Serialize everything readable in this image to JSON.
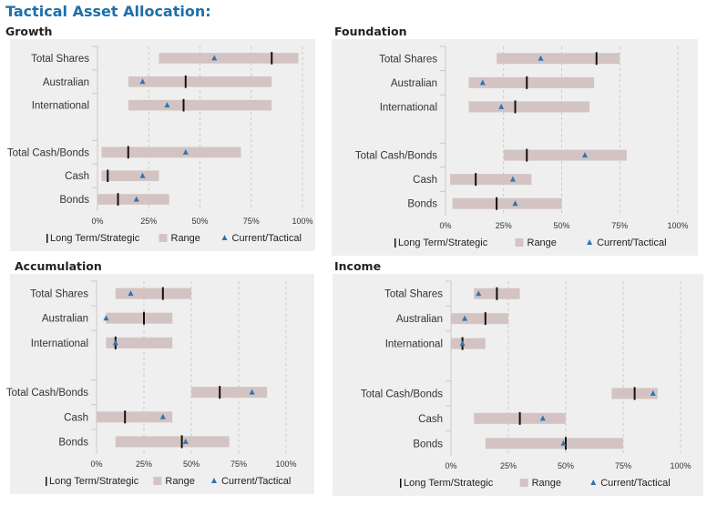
{
  "page_title": "Tactical Asset Allocation:",
  "colors": {
    "title": "#1f6fa8",
    "range_bar": "#d3c4c3",
    "strategic_marker": "#111111",
    "tactical_marker": "#2e75b6",
    "grid": "#c9c9c9",
    "panel_bg": "#efefef"
  },
  "chart_data": [
    {
      "panel": "growth",
      "title": "Growth",
      "type": "range-dot",
      "xlim": [
        0,
        100
      ],
      "x_ticks": [
        "0%",
        "25%",
        "50%",
        "75%",
        "100%"
      ],
      "legend": {
        "strategic": "Long Term/Strategic",
        "range": "Range",
        "tactical": "Current/Tactical"
      },
      "categories": [
        "Total Shares",
        "Australian",
        "International",
        "Total Cash/Bonds",
        "Cash",
        "Bonds"
      ],
      "range_min": [
        30,
        15,
        15,
        2,
        2,
        0
      ],
      "range_max": [
        98,
        85,
        85,
        70,
        30,
        35
      ],
      "strategic": [
        85,
        43,
        42,
        15,
        5,
        10
      ],
      "tactical": [
        57,
        22,
        34,
        43,
        22,
        19
      ]
    },
    {
      "panel": "foundation",
      "title": "Foundation",
      "type": "range-dot",
      "xlim": [
        0,
        100
      ],
      "x_ticks": [
        "0%",
        "25%",
        "50%",
        "75%",
        "100%"
      ],
      "legend": {
        "strategic": "Long Term/Strategic",
        "range": "Range",
        "tactical": "Current/Tactical"
      },
      "categories": [
        "Total Shares",
        "Australian",
        "International",
        "Total Cash/Bonds",
        "Cash",
        "Bonds"
      ],
      "range_min": [
        22,
        10,
        10,
        25,
        2,
        3
      ],
      "range_max": [
        75,
        64,
        62,
        78,
        37,
        50
      ],
      "strategic": [
        65,
        35,
        30,
        35,
        13,
        22
      ],
      "tactical": [
        41,
        16,
        24,
        60,
        29,
        30
      ]
    },
    {
      "panel": "accumulation",
      "title": "Accumulation",
      "type": "range-dot",
      "xlim": [
        0,
        100
      ],
      "x_ticks": [
        "0%",
        "25%",
        "50%",
        "75%",
        "100%"
      ],
      "legend": {
        "strategic": "Long Term/Strategic",
        "range": "Range",
        "tactical": "Current/Tactical"
      },
      "categories": [
        "Total Shares",
        "Australian",
        "International",
        "Total Cash/Bonds",
        "Cash",
        "Bonds"
      ],
      "range_min": [
        10,
        5,
        5,
        50,
        0,
        10
      ],
      "range_max": [
        50,
        40,
        40,
        90,
        40,
        70
      ],
      "strategic": [
        35,
        25,
        10,
        65,
        15,
        45
      ],
      "tactical": [
        18,
        5,
        10,
        82,
        35,
        47
      ]
    },
    {
      "panel": "income",
      "title": "Income",
      "type": "range-dot",
      "xlim": [
        0,
        100
      ],
      "x_ticks": [
        "0%",
        "25%",
        "50%",
        "75%",
        "100%"
      ],
      "legend": {
        "strategic": "Long Term/Strategic",
        "range": "Range",
        "tactical": "Current/Tactical"
      },
      "categories": [
        "Total Shares",
        "Australian",
        "International",
        "Total Cash/Bonds",
        "Cash",
        "Bonds"
      ],
      "range_min": [
        10,
        0,
        0,
        70,
        10,
        15
      ],
      "range_max": [
        30,
        25,
        15,
        90,
        50,
        75
      ],
      "strategic": [
        20,
        15,
        5,
        80,
        30,
        50
      ],
      "tactical": [
        12,
        6,
        5,
        88,
        40,
        49
      ]
    }
  ]
}
